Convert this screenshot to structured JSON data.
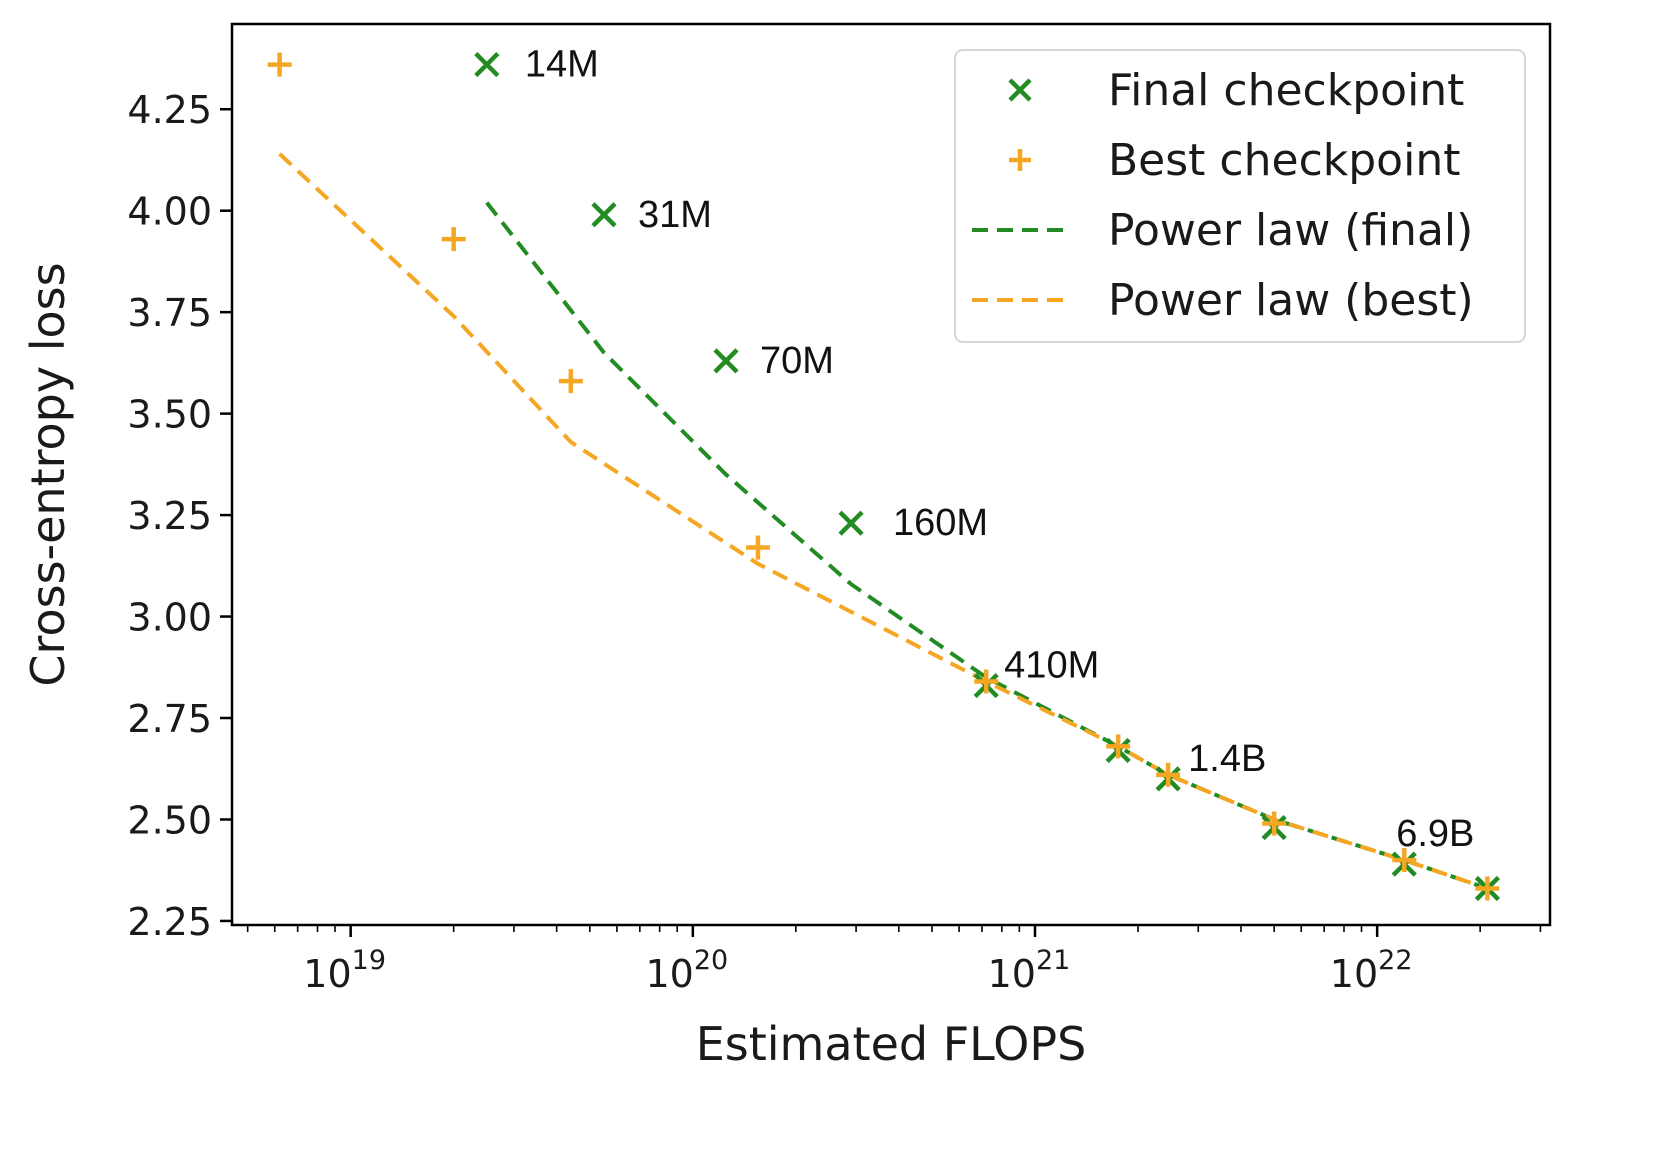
{
  "chart_data": {
    "type": "scatter",
    "xlabel": "Estimated FLOPS",
    "ylabel": "Cross-entropy loss",
    "x_scale": "log",
    "xlim": [
      4.5e+18,
      3.2e+22
    ],
    "ylim": [
      2.24,
      4.46
    ],
    "x_ticks": [
      {
        "value": 1e+19,
        "base": "10",
        "exp": "19"
      },
      {
        "value": 1e+20,
        "base": "10",
        "exp": "20"
      },
      {
        "value": 1e+21,
        "base": "10",
        "exp": "21"
      },
      {
        "value": 1e+22,
        "base": "10",
        "exp": "22"
      }
    ],
    "y_ticks": [
      {
        "value": 2.25,
        "label": "2.25"
      },
      {
        "value": 2.5,
        "label": "2.50"
      },
      {
        "value": 2.75,
        "label": "2.75"
      },
      {
        "value": 3.0,
        "label": "3.00"
      },
      {
        "value": 3.25,
        "label": "3.25"
      },
      {
        "value": 3.5,
        "label": "3.50"
      },
      {
        "value": 3.75,
        "label": "3.75"
      },
      {
        "value": 4.0,
        "label": "4.00"
      },
      {
        "value": 4.25,
        "label": "4.25"
      }
    ],
    "legend_position": "top-right",
    "series": [
      {
        "name": "Final checkpoint",
        "kind": "scatter",
        "marker": "x",
        "color": "#228b22",
        "points": [
          {
            "x": 2.5e+19,
            "y": 4.36
          },
          {
            "x": 5.5e+19,
            "y": 3.99
          },
          {
            "x": 1.25e+20,
            "y": 3.63
          },
          {
            "x": 2.9e+20,
            "y": 3.23
          },
          {
            "x": 7.2e+20,
            "y": 2.83
          },
          {
            "x": 1.75e+21,
            "y": 2.67
          },
          {
            "x": 2.45e+21,
            "y": 2.6
          },
          {
            "x": 5e+21,
            "y": 2.48
          },
          {
            "x": 1.2e+22,
            "y": 2.39
          },
          {
            "x": 2.1e+22,
            "y": 2.33
          }
        ]
      },
      {
        "name": "Best checkpoint",
        "kind": "scatter",
        "marker": "+",
        "color": "#f5a623",
        "points": [
          {
            "x": 6.2e+18,
            "y": 4.36
          },
          {
            "x": 2e+19,
            "y": 3.93
          },
          {
            "x": 4.4e+19,
            "y": 3.58
          },
          {
            "x": 1.55e+20,
            "y": 3.17
          },
          {
            "x": 7.2e+20,
            "y": 2.84
          },
          {
            "x": 1.75e+21,
            "y": 2.68
          },
          {
            "x": 2.45e+21,
            "y": 2.61
          },
          {
            "x": 5e+21,
            "y": 2.49
          },
          {
            "x": 1.2e+22,
            "y": 2.4
          },
          {
            "x": 2.1e+22,
            "y": 2.33
          }
        ]
      },
      {
        "name": "Power law (final)",
        "kind": "line",
        "dash": true,
        "color": "#228b22",
        "points": [
          {
            "x": 2.5e+19,
            "y": 4.02
          },
          {
            "x": 5.5e+19,
            "y": 3.65
          },
          {
            "x": 1.25e+20,
            "y": 3.35
          },
          {
            "x": 2.9e+20,
            "y": 3.08
          },
          {
            "x": 7.2e+20,
            "y": 2.85
          },
          {
            "x": 1.75e+21,
            "y": 2.68
          },
          {
            "x": 2.45e+21,
            "y": 2.61
          },
          {
            "x": 5e+21,
            "y": 2.5
          },
          {
            "x": 1.2e+22,
            "y": 2.4
          },
          {
            "x": 2.1e+22,
            "y": 2.33
          }
        ]
      },
      {
        "name": "Power law (best)",
        "kind": "line",
        "dash": true,
        "color": "#f5a623",
        "points": [
          {
            "x": 6.2e+18,
            "y": 4.14
          },
          {
            "x": 2e+19,
            "y": 3.74
          },
          {
            "x": 4.4e+19,
            "y": 3.43
          },
          {
            "x": 1.55e+20,
            "y": 3.13
          },
          {
            "x": 7.2e+20,
            "y": 2.84
          },
          {
            "x": 1.75e+21,
            "y": 2.68
          },
          {
            "x": 2.45e+21,
            "y": 2.61
          },
          {
            "x": 5e+21,
            "y": 2.5
          },
          {
            "x": 1.2e+22,
            "y": 2.4
          },
          {
            "x": 2.1e+22,
            "y": 2.33
          }
        ]
      }
    ],
    "annotations": [
      {
        "text": "14M",
        "x": 2.5e+19,
        "y": 4.36
      },
      {
        "text": "31M",
        "x": 5.5e+19,
        "y": 3.99
      },
      {
        "text": "70M",
        "x": 1.25e+20,
        "y": 3.63
      },
      {
        "text": "160M",
        "x": 2.9e+20,
        "y": 3.23
      },
      {
        "text": "410M",
        "x": 7.2e+20,
        "y": 2.83
      },
      {
        "text": "1.4B",
        "x": 2.45e+21,
        "y": 2.6
      },
      {
        "text": "6.9B",
        "x": 1.2e+22,
        "y": 2.39
      }
    ]
  }
}
